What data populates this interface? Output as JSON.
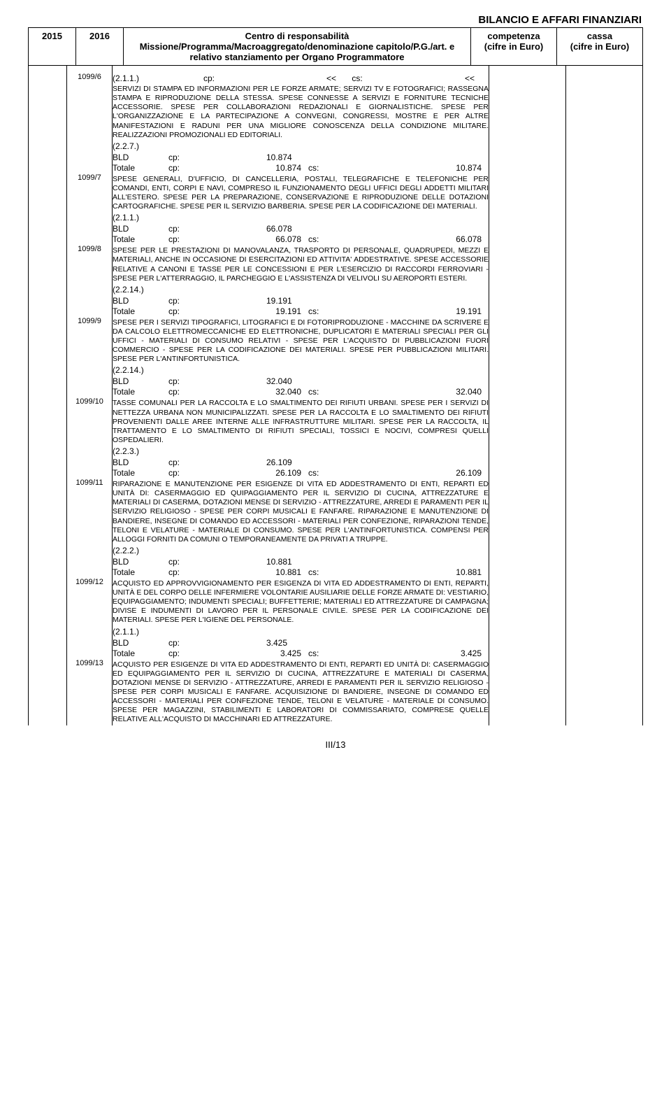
{
  "topTitle": "BILANCIO E AFFARI FINANZIARI",
  "header": {
    "year1": "2015",
    "year2": "2016",
    "centerLine1": "Centro di responsabilità",
    "centerLine2": "Missione/Programma/Macroaggregato/denominazione capitolo/P.G./art. e relativo stanziamento per Organo Programmatore",
    "col4Line1": "competenza",
    "col4Line2": "(cifre in Euro)",
    "col5Line1": "cassa",
    "col5Line2": "(cifre in Euro)"
  },
  "entries": [
    {
      "code": "1099/6",
      "topRef": "(2.1.1.)",
      "topCp": "cp:",
      "topVal1": "<<",
      "topCs": "cs:",
      "topVal2": "<<",
      "desc": "SERVIZI DI STAMPA ED INFORMAZIONI PER LE FORZE ARMATE; SERVIZI TV E FOTOGRAFICI; RASSEGNA STAMPA E RIPRODUZIONE DELLA STESSA. SPESE CONNESSE A SERVIZI E FORNITURE TECNICHE ACCESSORIE. SPESE PER COLLABORAZIONI REDAZIONALI E GIORNALISTICHE. SPESE PER L'ORGANIZZAZIONE E LA PARTECIPAZIONE A CONVEGNI, CONGRESSI, MOSTRE E PER ALTRE MANIFESTAZIONI E RADUNI PER UNA MIGLIORE CONOSCENZA DELLA CONDIZIONE MILITARE. REALIZZAZIONI PROMOZIONALI ED EDITORIALI.",
      "ref": "(2.2.7.)",
      "bldLabel": "BLD",
      "bldCp": "cp:",
      "bldVal": "10.874",
      "totLabel": "Totale",
      "totCp": "cp:",
      "totVal1": "10.874",
      "totCs": "cs:",
      "totVal2": "10.874"
    },
    {
      "code": "1099/7",
      "desc": "SPESE GENERALI, D'UFFICIO, DI CANCELLERIA, POSTALI, TELEGRAFICHE E TELEFONICHE PER COMANDI, ENTI, CORPI E NAVI, COMPRESO IL FUNZIONAMENTO DEGLI UFFICI DEGLI ADDETTI MILITARI ALL'ESTERO. SPESE PER LA PREPARAZIONE, CONSERVAZIONE E RIPRODUZIONE DELLE DOTAZIONI CARTOGRAFICHE. SPESE PER IL SERVIZIO BARBERIA. SPESE PER LA CODIFICAZIONE DEI MATERIALI.",
      "ref": "(2.1.1.)",
      "bldLabel": "BLD",
      "bldCp": "cp:",
      "bldVal": "66.078",
      "totLabel": "Totale",
      "totCp": "cp:",
      "totVal1": "66.078",
      "totCs": "cs:",
      "totVal2": "66.078"
    },
    {
      "code": "1099/8",
      "desc": "SPESE PER LE PRESTAZIONI DI MANOVALANZA, TRASPORTO DI PERSONALE, QUADRUPEDI, MEZZI E MATERIALI, ANCHE IN OCCASIONE DI ESERCITAZIONI ED ATTIVITA' ADDESTRATIVE. SPESE ACCESSORIE RELATIVE A CANONI E TASSE PER LE CONCESSIONI E PER L'ESERCIZIO DI RACCORDI FERROVIARI - SPESE PER L'ATTERRAGGIO, IL PARCHEGGIO E L'ASSISTENZA DI VELIVOLI SU AEROPORTI ESTERI.",
      "ref": "(2.2.14.)",
      "bldLabel": "BLD",
      "bldCp": "cp:",
      "bldVal": "19.191",
      "totLabel": "Totale",
      "totCp": "cp:",
      "totVal1": "19.191",
      "totCs": "cs:",
      "totVal2": "19.191"
    },
    {
      "code": "1099/9",
      "desc": "SPESE PER I SERVIZI TIPOGRAFICI, LITOGRAFICI E DI FOTORIPRODUZIONE - MACCHINE DA SCRIVERE E DA CALCOLO ELETTROMECCANICHE ED ELETTRONICHE, DUPLICATORI E MATERIALI SPECIALI PER GLI UFFICI - MATERIALI DI CONSUMO RELATIVI - SPESE PER L'ACQUISTO DI PUBBLICAZIONI FUORI COMMERCIO - SPESE PER LA CODIFICAZIONE DEI MATERIALI. SPESE PER PUBBLICAZIONI MILITARI. SPESE PER L'ANTINFORTUNISTICA.",
      "ref": "(2.2.14.)",
      "bldLabel": "BLD",
      "bldCp": "cp:",
      "bldVal": "32.040",
      "totLabel": "Totale",
      "totCp": "cp:",
      "totVal1": "32.040",
      "totCs": "cs:",
      "totVal2": "32.040"
    },
    {
      "code": "1099/10",
      "desc": "TASSE COMUNALI PER LA RACCOLTA E LO SMALTIMENTO DEI RIFIUTI URBANI. SPESE PER I SERVIZI DI NETTEZZA URBANA NON MUNICIPALIZZATI. SPESE PER LA RACCOLTA E LO SMALTIMENTO DEI RIFIUTI PROVENIENTI DALLE AREE INTERNE ALLE INFRASTRUTTURE MILITARI. SPESE PER LA RACCOLTA, IL TRATTAMENTO E LO SMALTIMENTO DI RIFIUTI SPECIALI, TOSSICI E NOCIVI, COMPRESI QUELLI OSPEDALIERI.",
      "ref": "(2.2.3.)",
      "bldLabel": "BLD",
      "bldCp": "cp:",
      "bldVal": "26.109",
      "totLabel": "Totale",
      "totCp": "cp:",
      "totVal1": "26.109",
      "totCs": "cs:",
      "totVal2": "26.109"
    },
    {
      "code": "1099/11",
      "desc": "RIPARAZIONE E MANUTENZIONE PER ESIGENZE DI VITA ED ADDESTRAMENTO DI ENTI, REPARTI ED UNITÀ DI: CASERMAGGIO ED QUIPAGGIAMENTO PER IL SERVIZIO DI CUCINA, ATTREZZATURE E MATERIALI DI CASERMA, DOTAZIONI MENSE DI SERVIZIO - ATTREZZATURE, ARREDI E PARAMENTI PER IL SERVIZIO RELIGIOSO - SPESE PER CORPI MUSICALI E FANFARE. RIPARAZIONE E MANUTENZIONE DI BANDIERE, INSEGNE DI COMANDO ED ACCESSORI - MATERIALI PER CONFEZIONE, RIPARAZIONI TENDE, TELONI E VELATURE - MATERIALE DI CONSUMO. SPESE PER L'ANTINFORTUNISTICA. COMPENSI PER ALLOGGI FORNITI DA COMUNI O TEMPORANEAMENTE DA PRIVATI A TRUPPE.",
      "ref": "(2.2.2.)",
      "bldLabel": "BLD",
      "bldCp": "cp:",
      "bldVal": "10.881",
      "totLabel": "Totale",
      "totCp": "cp:",
      "totVal1": "10.881",
      "totCs": "cs:",
      "totVal2": "10.881"
    },
    {
      "code": "1099/12",
      "desc": "ACQUISTO ED APPROVVIGIONAMENTO PER ESIGENZA DI VITA ED ADDESTRAMENTO DI ENTI, REPARTI, UNITÀ E DEL CORPO DELLE INFERMIERE VOLONTARIE AUSILIARIE DELLE FORZE ARMATE DI: VESTIARIO, EQUIPAGGIAMENTO; INDUMENTI SPECIALI; BUFFETTERIE; MATERIALI ED ATTREZZATURE DI CAMPAGNA; DIVISE E INDUMENTI DI LAVORO PER IL PERSONALE CIVILE. SPESE PER LA CODIFICAZIONE DEI MATERIALI. SPESE PER L'IGIENE DEL PERSONALE.",
      "ref": "(2.1.1.)",
      "bldLabel": "BLD",
      "bldCp": "cp:",
      "bldVal": "3.425",
      "totLabel": "Totale",
      "totCp": "cp:",
      "totVal1": "3.425",
      "totCs": "cs:",
      "totVal2": "3.425"
    },
    {
      "code": "1099/13",
      "desc": "ACQUISTO PER ESIGENZE DI VITA ED ADDESTRAMENTO DI ENTI, REPARTI ED UNITÀ DI: CASERMAGGIO ED EQUIPAGGIAMENTO PER IL SERVIZIO DI CUCINA, ATTREZZATURE E MATERIALI DI CASERMA, DOTAZIONI MENSE DI SERVIZIO - ATTREZZATURE, ARREDI E PARAMENTI PER IL SERVIZIO RELIGIOSO - SPESE PER CORPI MUSICALI E FANFARE. ACQUISIZIONE DI BANDIERE, INSEGNE DI COMANDO ED ACCESSORI - MATERIALI PER CONFEZIONE TENDE, TELONI E VELATURE - MATERIALE DI CONSUMO. SPESE PER MAGAZZINI, STABILIMENTI E LABORATORI DI COMMISSARIATO, COMPRESE QUELLE RELATIVE ALL'ACQUISTO DI MACCHINARI ED ATTREZZATURE."
    }
  ],
  "footer": "III/13"
}
